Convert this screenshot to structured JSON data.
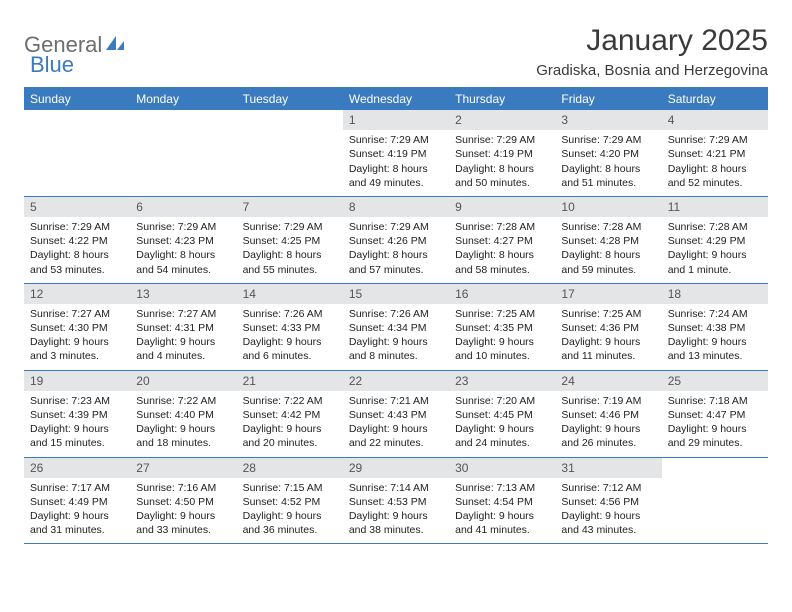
{
  "logo": {
    "part1": "General",
    "part2": "Blue"
  },
  "title": "January 2025",
  "location": "Gradiska, Bosnia and Herzegovina",
  "colors": {
    "accent": "#3a7bbf",
    "header_text": "#ffffff",
    "daynum_bg": "#e4e5e6",
    "body_text": "#222222",
    "logo_gray": "#6d6e71"
  },
  "day_headers": [
    "Sunday",
    "Monday",
    "Tuesday",
    "Wednesday",
    "Thursday",
    "Friday",
    "Saturday"
  ],
  "weeks": [
    [
      {
        "empty": true
      },
      {
        "empty": true
      },
      {
        "empty": true
      },
      {
        "n": "1",
        "sr": "Sunrise: 7:29 AM",
        "ss": "Sunset: 4:19 PM",
        "d1": "Daylight: 8 hours",
        "d2": "and 49 minutes."
      },
      {
        "n": "2",
        "sr": "Sunrise: 7:29 AM",
        "ss": "Sunset: 4:19 PM",
        "d1": "Daylight: 8 hours",
        "d2": "and 50 minutes."
      },
      {
        "n": "3",
        "sr": "Sunrise: 7:29 AM",
        "ss": "Sunset: 4:20 PM",
        "d1": "Daylight: 8 hours",
        "d2": "and 51 minutes."
      },
      {
        "n": "4",
        "sr": "Sunrise: 7:29 AM",
        "ss": "Sunset: 4:21 PM",
        "d1": "Daylight: 8 hours",
        "d2": "and 52 minutes."
      }
    ],
    [
      {
        "n": "5",
        "sr": "Sunrise: 7:29 AM",
        "ss": "Sunset: 4:22 PM",
        "d1": "Daylight: 8 hours",
        "d2": "and 53 minutes."
      },
      {
        "n": "6",
        "sr": "Sunrise: 7:29 AM",
        "ss": "Sunset: 4:23 PM",
        "d1": "Daylight: 8 hours",
        "d2": "and 54 minutes."
      },
      {
        "n": "7",
        "sr": "Sunrise: 7:29 AM",
        "ss": "Sunset: 4:25 PM",
        "d1": "Daylight: 8 hours",
        "d2": "and 55 minutes."
      },
      {
        "n": "8",
        "sr": "Sunrise: 7:29 AM",
        "ss": "Sunset: 4:26 PM",
        "d1": "Daylight: 8 hours",
        "d2": "and 57 minutes."
      },
      {
        "n": "9",
        "sr": "Sunrise: 7:28 AM",
        "ss": "Sunset: 4:27 PM",
        "d1": "Daylight: 8 hours",
        "d2": "and 58 minutes."
      },
      {
        "n": "10",
        "sr": "Sunrise: 7:28 AM",
        "ss": "Sunset: 4:28 PM",
        "d1": "Daylight: 8 hours",
        "d2": "and 59 minutes."
      },
      {
        "n": "11",
        "sr": "Sunrise: 7:28 AM",
        "ss": "Sunset: 4:29 PM",
        "d1": "Daylight: 9 hours",
        "d2": "and 1 minute."
      }
    ],
    [
      {
        "n": "12",
        "sr": "Sunrise: 7:27 AM",
        "ss": "Sunset: 4:30 PM",
        "d1": "Daylight: 9 hours",
        "d2": "and 3 minutes."
      },
      {
        "n": "13",
        "sr": "Sunrise: 7:27 AM",
        "ss": "Sunset: 4:31 PM",
        "d1": "Daylight: 9 hours",
        "d2": "and 4 minutes."
      },
      {
        "n": "14",
        "sr": "Sunrise: 7:26 AM",
        "ss": "Sunset: 4:33 PM",
        "d1": "Daylight: 9 hours",
        "d2": "and 6 minutes."
      },
      {
        "n": "15",
        "sr": "Sunrise: 7:26 AM",
        "ss": "Sunset: 4:34 PM",
        "d1": "Daylight: 9 hours",
        "d2": "and 8 minutes."
      },
      {
        "n": "16",
        "sr": "Sunrise: 7:25 AM",
        "ss": "Sunset: 4:35 PM",
        "d1": "Daylight: 9 hours",
        "d2": "and 10 minutes."
      },
      {
        "n": "17",
        "sr": "Sunrise: 7:25 AM",
        "ss": "Sunset: 4:36 PM",
        "d1": "Daylight: 9 hours",
        "d2": "and 11 minutes."
      },
      {
        "n": "18",
        "sr": "Sunrise: 7:24 AM",
        "ss": "Sunset: 4:38 PM",
        "d1": "Daylight: 9 hours",
        "d2": "and 13 minutes."
      }
    ],
    [
      {
        "n": "19",
        "sr": "Sunrise: 7:23 AM",
        "ss": "Sunset: 4:39 PM",
        "d1": "Daylight: 9 hours",
        "d2": "and 15 minutes."
      },
      {
        "n": "20",
        "sr": "Sunrise: 7:22 AM",
        "ss": "Sunset: 4:40 PM",
        "d1": "Daylight: 9 hours",
        "d2": "and 18 minutes."
      },
      {
        "n": "21",
        "sr": "Sunrise: 7:22 AM",
        "ss": "Sunset: 4:42 PM",
        "d1": "Daylight: 9 hours",
        "d2": "and 20 minutes."
      },
      {
        "n": "22",
        "sr": "Sunrise: 7:21 AM",
        "ss": "Sunset: 4:43 PM",
        "d1": "Daylight: 9 hours",
        "d2": "and 22 minutes."
      },
      {
        "n": "23",
        "sr": "Sunrise: 7:20 AM",
        "ss": "Sunset: 4:45 PM",
        "d1": "Daylight: 9 hours",
        "d2": "and 24 minutes."
      },
      {
        "n": "24",
        "sr": "Sunrise: 7:19 AM",
        "ss": "Sunset: 4:46 PM",
        "d1": "Daylight: 9 hours",
        "d2": "and 26 minutes."
      },
      {
        "n": "25",
        "sr": "Sunrise: 7:18 AM",
        "ss": "Sunset: 4:47 PM",
        "d1": "Daylight: 9 hours",
        "d2": "and 29 minutes."
      }
    ],
    [
      {
        "n": "26",
        "sr": "Sunrise: 7:17 AM",
        "ss": "Sunset: 4:49 PM",
        "d1": "Daylight: 9 hours",
        "d2": "and 31 minutes."
      },
      {
        "n": "27",
        "sr": "Sunrise: 7:16 AM",
        "ss": "Sunset: 4:50 PM",
        "d1": "Daylight: 9 hours",
        "d2": "and 33 minutes."
      },
      {
        "n": "28",
        "sr": "Sunrise: 7:15 AM",
        "ss": "Sunset: 4:52 PM",
        "d1": "Daylight: 9 hours",
        "d2": "and 36 minutes."
      },
      {
        "n": "29",
        "sr": "Sunrise: 7:14 AM",
        "ss": "Sunset: 4:53 PM",
        "d1": "Daylight: 9 hours",
        "d2": "and 38 minutes."
      },
      {
        "n": "30",
        "sr": "Sunrise: 7:13 AM",
        "ss": "Sunset: 4:54 PM",
        "d1": "Daylight: 9 hours",
        "d2": "and 41 minutes."
      },
      {
        "n": "31",
        "sr": "Sunrise: 7:12 AM",
        "ss": "Sunset: 4:56 PM",
        "d1": "Daylight: 9 hours",
        "d2": "and 43 minutes."
      },
      {
        "empty": true
      }
    ]
  ]
}
